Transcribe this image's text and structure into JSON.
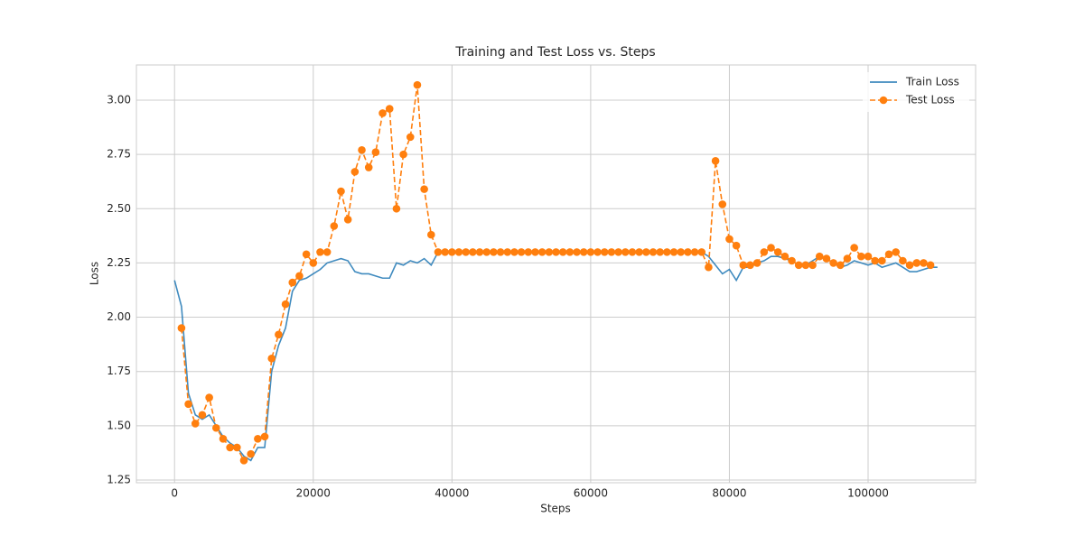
{
  "chart_data": {
    "type": "line",
    "title": "Training and Test Loss vs. Steps",
    "x_label": "Steps",
    "y_label": "Loss",
    "xlim": [
      -5500,
      115500
    ],
    "ylim": [
      1.2375,
      3.162
    ],
    "xticks": [
      0,
      20000,
      40000,
      60000,
      80000,
      100000
    ],
    "yticks": [
      1.25,
      {
        "value": 1.5,
        "label": "1.50"
      },
      1.75,
      {
        "value": 2.0,
        "label": "2.00"
      },
      2.25,
      {
        "value": 2.5,
        "label": "2.50"
      },
      2.75,
      {
        "value": 3.0,
        "label": "3.00"
      }
    ],
    "grid": true,
    "legend": "upper right",
    "series": [
      {
        "name": "Train Loss",
        "color": "#1f77b4",
        "style": "solid",
        "x": [
          0,
          1000,
          2000,
          3000,
          4000,
          5000,
          6000,
          7000,
          8000,
          9000,
          10000,
          11000,
          12000,
          13000,
          14000,
          15000,
          16000,
          17000,
          18000,
          19000,
          20000,
          21000,
          22000,
          23000,
          24000,
          25000,
          26000,
          27000,
          28000,
          29000,
          30000,
          31000,
          32000,
          33000,
          34000,
          35000,
          36000,
          37000,
          38000,
          39000,
          40000,
          41000,
          42000,
          43000,
          44000,
          45000,
          46000,
          47000,
          48000,
          49000,
          50000,
          51000,
          52000,
          53000,
          54000,
          55000,
          56000,
          57000,
          58000,
          59000,
          60000,
          61000,
          62000,
          63000,
          64000,
          65000,
          66000,
          67000,
          68000,
          69000,
          70000,
          71000,
          72000,
          73000,
          74000,
          75000,
          76000,
          77000,
          78000,
          79000,
          80000,
          81000,
          82000,
          83000,
          84000,
          85000,
          86000,
          87000,
          88000,
          89000,
          90000,
          91000,
          92000,
          93000,
          94000,
          95000,
          96000,
          97000,
          98000,
          99000,
          100000,
          101000,
          102000,
          103000,
          104000,
          105000,
          106000,
          107000,
          108000,
          109000,
          110000
        ],
        "values": [
          2.17,
          2.05,
          1.65,
          1.55,
          1.53,
          1.55,
          1.5,
          1.45,
          1.42,
          1.4,
          1.36,
          1.34,
          1.4,
          1.4,
          1.75,
          1.87,
          1.95,
          2.12,
          2.17,
          2.18,
          2.2,
          2.22,
          2.25,
          2.26,
          2.27,
          2.26,
          2.21,
          2.2,
          2.2,
          2.19,
          2.18,
          2.18,
          2.25,
          2.24,
          2.26,
          2.25,
          2.27,
          2.24,
          2.3,
          2.3,
          2.3,
          2.3,
          2.3,
          2.3,
          2.3,
          2.3,
          2.3,
          2.3,
          2.3,
          2.3,
          2.3,
          2.3,
          2.3,
          2.3,
          2.3,
          2.3,
          2.3,
          2.3,
          2.3,
          2.3,
          2.3,
          2.3,
          2.3,
          2.3,
          2.3,
          2.3,
          2.3,
          2.3,
          2.3,
          2.3,
          2.3,
          2.3,
          2.3,
          2.3,
          2.3,
          2.3,
          2.3,
          2.28,
          2.24,
          2.2,
          2.22,
          2.17,
          2.23,
          2.23,
          2.25,
          2.26,
          2.28,
          2.28,
          2.27,
          2.26,
          2.24,
          2.24,
          2.26,
          2.28,
          2.27,
          2.25,
          2.23,
          2.24,
          2.26,
          2.25,
          2.24,
          2.25,
          2.23,
          2.24,
          2.25,
          2.23,
          2.21,
          2.21,
          2.22,
          2.23,
          2.23
        ]
      },
      {
        "name": "Test Loss",
        "color": "#ff7f0e",
        "style": "dashed",
        "marker": "circle",
        "x": [
          1000,
          2000,
          3000,
          4000,
          5000,
          6000,
          7000,
          8000,
          9000,
          10000,
          11000,
          12000,
          13000,
          14000,
          15000,
          16000,
          17000,
          18000,
          19000,
          20000,
          21000,
          22000,
          23000,
          24000,
          25000,
          26000,
          27000,
          28000,
          29000,
          30000,
          31000,
          32000,
          33000,
          34000,
          35000,
          36000,
          37000,
          38000,
          39000,
          40000,
          41000,
          42000,
          43000,
          44000,
          45000,
          46000,
          47000,
          48000,
          49000,
          50000,
          51000,
          52000,
          53000,
          54000,
          55000,
          56000,
          57000,
          58000,
          59000,
          60000,
          61000,
          62000,
          63000,
          64000,
          65000,
          66000,
          67000,
          68000,
          69000,
          70000,
          71000,
          72000,
          73000,
          74000,
          75000,
          76000,
          77000,
          78000,
          79000,
          80000,
          81000,
          82000,
          83000,
          84000,
          85000,
          86000,
          87000,
          88000,
          89000,
          90000,
          91000,
          92000,
          93000,
          94000,
          95000,
          96000,
          97000,
          98000,
          99000,
          100000,
          101000,
          102000,
          103000,
          104000,
          105000,
          106000,
          107000,
          108000,
          109000
        ],
        "values": [
          1.95,
          1.6,
          1.51,
          1.55,
          1.63,
          1.49,
          1.44,
          1.4,
          1.4,
          1.34,
          1.37,
          1.44,
          1.45,
          1.81,
          1.92,
          2.06,
          2.16,
          2.19,
          2.29,
          2.25,
          2.3,
          2.3,
          2.42,
          2.58,
          2.45,
          2.67,
          2.77,
          2.69,
          2.76,
          2.94,
          2.96,
          2.5,
          2.75,
          2.83,
          3.07,
          2.59,
          2.38,
          2.3,
          2.3,
          2.3,
          2.3,
          2.3,
          2.3,
          2.3,
          2.3,
          2.3,
          2.3,
          2.3,
          2.3,
          2.3,
          2.3,
          2.3,
          2.3,
          2.3,
          2.3,
          2.3,
          2.3,
          2.3,
          2.3,
          2.3,
          2.3,
          2.3,
          2.3,
          2.3,
          2.3,
          2.3,
          2.3,
          2.3,
          2.3,
          2.3,
          2.3,
          2.3,
          2.3,
          2.3,
          2.3,
          2.3,
          2.23,
          2.72,
          2.52,
          2.36,
          2.33,
          2.24,
          2.24,
          2.25,
          2.3,
          2.32,
          2.3,
          2.28,
          2.26,
          2.24,
          2.24,
          2.24,
          2.28,
          2.27,
          2.25,
          2.24,
          2.27,
          2.32,
          2.28,
          2.28,
          2.26,
          2.26,
          2.29,
          2.3,
          2.26,
          2.24,
          2.25,
          2.25,
          2.24
        ]
      }
    ]
  }
}
